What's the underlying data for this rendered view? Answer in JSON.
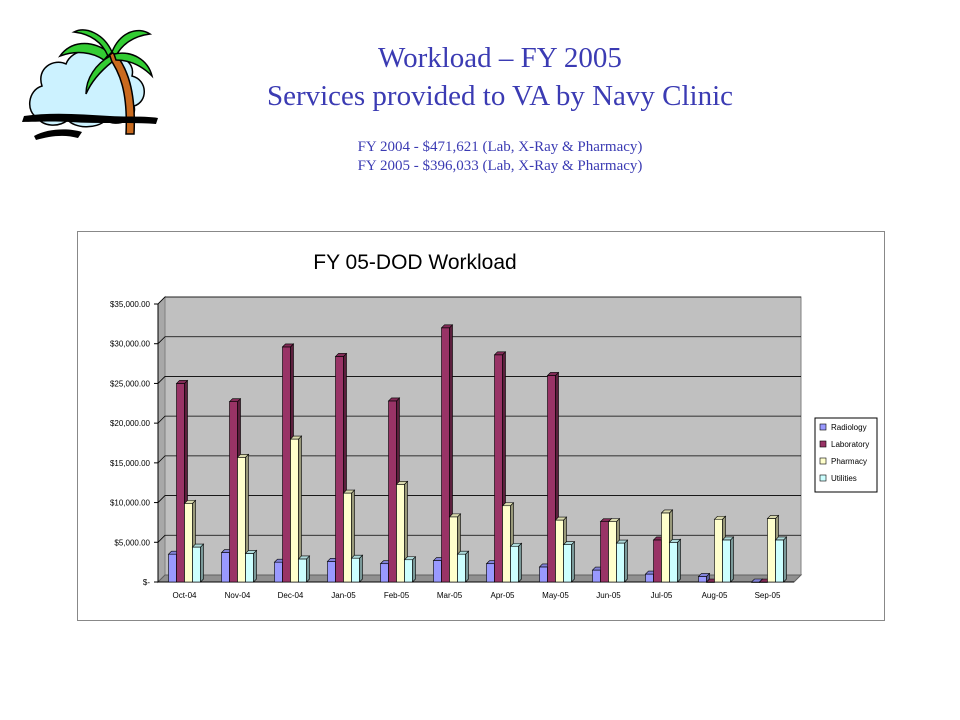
{
  "slide": {
    "title_line1": "Workload – FY 2005",
    "title_line2": "Services provided to VA by Navy Clinic",
    "summary_line1": "FY 2004 - $471,621 (Lab, X-Ray & Pharmacy)",
    "summary_line2": "FY 2005 - $396,033 (Lab, X-Ray & Pharmacy)",
    "logo_icon": "palm-tree-island-icon"
  },
  "chart_data": {
    "type": "bar",
    "title": "FY 05-DOD Workload",
    "xlabel": "",
    "ylabel": "",
    "ylim": [
      0,
      35000
    ],
    "yticks": [
      0,
      5000,
      10000,
      15000,
      20000,
      25000,
      30000,
      35000
    ],
    "ytick_labels": [
      "$-",
      "$5,000.00",
      "$10,000.00",
      "$15,000.00",
      "$20,000.00",
      "$25,000.00",
      "$30,000.00",
      "$35,000.00"
    ],
    "grid": true,
    "legend_position": "right",
    "categories": [
      "Oct-04",
      "Nov-04",
      "Dec-04",
      "Jan-05",
      "Feb-05",
      "Mar-05",
      "Apr-05",
      "May-05",
      "Jun-05",
      "Jul-05",
      "Aug-05",
      "Sep-05"
    ],
    "series": [
      {
        "name": "Radiology",
        "color": "#9999ff",
        "values": [
          3500,
          3700,
          2500,
          2600,
          2300,
          2700,
          2300,
          1900,
          1500,
          1000,
          700,
          0
        ]
      },
      {
        "name": "Laboratory",
        "color": "#993366",
        "values": [
          25000,
          22700,
          29600,
          28400,
          22800,
          32000,
          28600,
          26000,
          7600,
          5300,
          0,
          0
        ]
      },
      {
        "name": "Pharmacy",
        "color": "#ffffcc",
        "values": [
          9900,
          15700,
          18000,
          11200,
          12300,
          8200,
          9600,
          7800,
          7600,
          8700,
          7900,
          8000
        ]
      },
      {
        "name": "Utilities",
        "color": "#ccffff",
        "values": [
          4400,
          3600,
          2900,
          3000,
          2800,
          3500,
          4500,
          4700,
          4900,
          5000,
          5300,
          5300
        ]
      }
    ]
  }
}
